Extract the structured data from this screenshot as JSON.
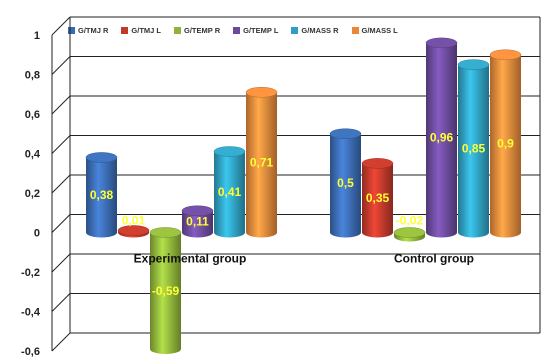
{
  "chart_data": {
    "type": "bar",
    "categories": [
      "Experimental group",
      "Control group"
    ],
    "series": [
      {
        "name": "G/TMJ R",
        "values": [
          0.38,
          0.5
        ],
        "color": "#3a6ab0"
      },
      {
        "name": "G/TMJ L",
        "values": [
          0.01,
          0.35
        ],
        "color": "#c0392b"
      },
      {
        "name": "G/TEMP R",
        "values": [
          -0.59,
          -0.02
        ],
        "color": "#8fb33a"
      },
      {
        "name": "G/TEMP L",
        "values": [
          0.11,
          0.96
        ],
        "color": "#6b4a9a"
      },
      {
        "name": "G/MASS R",
        "values": [
          0.41,
          0.85
        ],
        "color": "#2f9fbf"
      },
      {
        "name": "G/MASS L",
        "values": [
          0.71,
          0.9
        ],
        "color": "#e8873a"
      }
    ],
    "data_labels": [
      [
        "0,38",
        "0,5"
      ],
      [
        "0,01",
        "0,35"
      ],
      [
        "-0,59",
        "-0,02"
      ],
      [
        "0,11",
        "0,96"
      ],
      [
        "0,41",
        "0,85"
      ],
      [
        "0,71",
        "0,9"
      ]
    ],
    "ylim": [
      -0.6,
      1.0
    ],
    "yticks": [
      "1",
      "0,8",
      "0,6",
      "0,4",
      "0,2",
      "0",
      "-0,2",
      "-0,4",
      "-0,6"
    ],
    "grid": true,
    "legend_position": "top",
    "value_label_color": "#ffff33"
  }
}
